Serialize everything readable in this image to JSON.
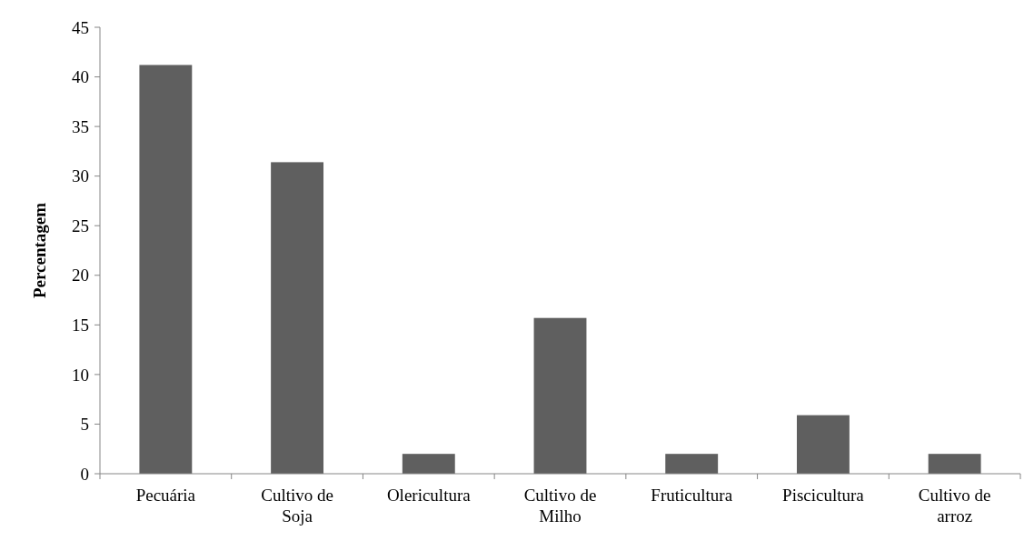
{
  "chart_data": {
    "type": "bar",
    "ylabel": "Percentagem",
    "categories": [
      "Pecuária",
      "Cultivo de Soja",
      "Olericultura",
      "Cultivo de Milho",
      "Fruticultura",
      "Piscicultura",
      "Cultivo de arroz"
    ],
    "values": [
      41.2,
      31.4,
      2,
      15.7,
      2,
      5.9,
      2
    ],
    "color": "#5f5f5f",
    "ylim": [
      0,
      45
    ],
    "yticks": [
      0,
      5,
      10,
      15,
      20,
      25,
      30,
      35,
      40,
      45
    ],
    "grid": false
  }
}
